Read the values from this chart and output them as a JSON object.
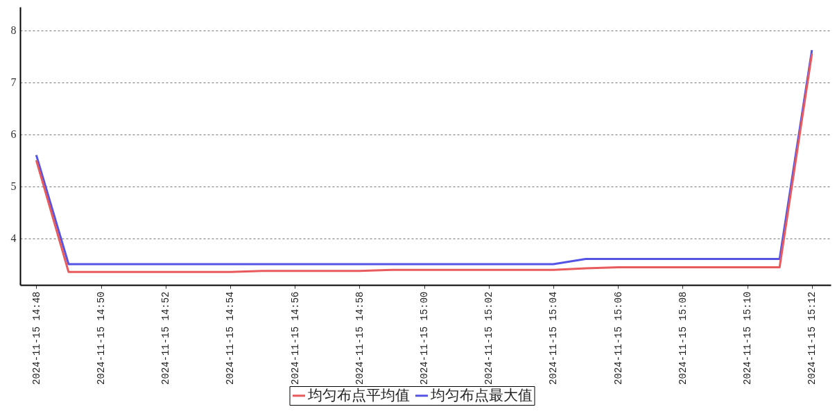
{
  "chart_data": {
    "type": "line",
    "x": [
      "2024-11-15T14:48",
      "2024-11-15T14:49",
      "2024-11-15T14:50",
      "2024-11-15T14:51",
      "2024-11-15T14:52",
      "2024-11-15T14:53",
      "2024-11-15T14:54",
      "2024-11-15T14:55",
      "2024-11-15T14:56",
      "2024-11-15T14:57",
      "2024-11-15T14:58",
      "2024-11-15T14:59",
      "2024-11-15T15:00",
      "2024-11-15T15:01",
      "2024-11-15T15:02",
      "2024-11-15T15:03",
      "2024-11-15T15:04",
      "2024-11-15T15:05",
      "2024-11-15T15:06",
      "2024-11-15T15:07",
      "2024-11-15T15:08",
      "2024-11-15T15:09",
      "2024-11-15T15:10",
      "2024-11-15T15:11",
      "2024-11-15T15:12"
    ],
    "series": [
      {
        "name": "均匀布点平均值",
        "color": "#e85a5c",
        "values": [
          5.5,
          3.35,
          3.35,
          3.35,
          3.35,
          3.35,
          3.35,
          3.37,
          3.37,
          3.37,
          3.37,
          3.39,
          3.39,
          3.39,
          3.39,
          3.39,
          3.39,
          3.42,
          3.44,
          3.44,
          3.44,
          3.44,
          3.44,
          3.44,
          7.55
        ]
      },
      {
        "name": "均匀布点最大值",
        "color": "#5353e6",
        "values": [
          5.6,
          3.5,
          3.5,
          3.5,
          3.5,
          3.5,
          3.5,
          3.5,
          3.5,
          3.5,
          3.5,
          3.5,
          3.5,
          3.5,
          3.5,
          3.5,
          3.5,
          3.6,
          3.6,
          3.6,
          3.6,
          3.6,
          3.6,
          3.6,
          7.62
        ]
      }
    ],
    "xlim": [
      "2024-11-15T14:47:30",
      "2024-11-15T15:12:35"
    ],
    "xticks": [
      {
        "value": "2024-11-15T14:48",
        "label": "2024-11-15 14:48"
      },
      {
        "value": "2024-11-15T14:50",
        "label": "2024-11-15 14:50"
      },
      {
        "value": "2024-11-15T14:52",
        "label": "2024-11-15 14:52"
      },
      {
        "value": "2024-11-15T14:54",
        "label": "2024-11-15 14:54"
      },
      {
        "value": "2024-11-15T14:56",
        "label": "2024-11-15 14:56"
      },
      {
        "value": "2024-11-15T14:58",
        "label": "2024-11-15 14:58"
      },
      {
        "value": "2024-11-15T15:00",
        "label": "2024-11-15 15:00"
      },
      {
        "value": "2024-11-15T15:02",
        "label": "2024-11-15 15:02"
      },
      {
        "value": "2024-11-15T15:04",
        "label": "2024-11-15 15:04"
      },
      {
        "value": "2024-11-15T15:06",
        "label": "2024-11-15 15:06"
      },
      {
        "value": "2024-11-15T15:08",
        "label": "2024-11-15 15:08"
      },
      {
        "value": "2024-11-15T15:10",
        "label": "2024-11-15 15:10"
      },
      {
        "value": "2024-11-15T15:12",
        "label": "2024-11-15 15:12"
      }
    ],
    "ylim": [
      3.1,
      8.45
    ],
    "yticks": [
      4,
      5,
      6,
      7,
      8
    ],
    "grid": "y",
    "legend": "bottom",
    "line_style": "solid"
  }
}
